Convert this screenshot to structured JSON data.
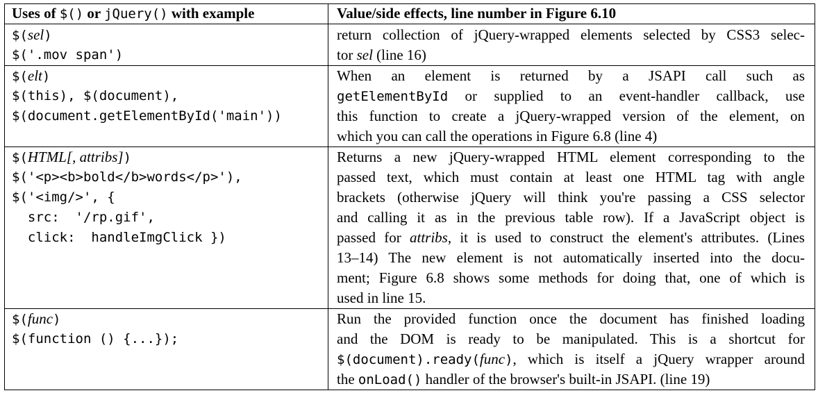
{
  "header": {
    "col1": [
      {
        "t": "Uses of ",
        "s": "serif bold"
      },
      {
        "t": "$()",
        "s": "mono"
      },
      {
        "t": " or ",
        "s": "serif bold"
      },
      {
        "t": "jQuery()",
        "s": "mono"
      },
      {
        "t": " with example",
        "s": "serif bold"
      }
    ],
    "col2": "Value/side effects, line number in Figure 6.10"
  },
  "rows": [
    {
      "left": [
        [
          {
            "t": "$(",
            "s": "mono"
          },
          {
            "t": "sel",
            "s": "it"
          },
          {
            "t": ")",
            "s": "mono"
          }
        ],
        [
          {
            "t": "$('.mov span')",
            "s": "mono"
          }
        ]
      ],
      "right": [
        [
          {
            "t": "return collection of jQuery-wrapped elements selected by CSS3 selec-",
            "s": "serif"
          }
        ],
        [
          {
            "t": "tor ",
            "s": "serif"
          },
          {
            "t": "sel",
            "s": "it"
          },
          {
            "t": " (line 16)",
            "s": "serif"
          }
        ]
      ]
    },
    {
      "left": [
        [
          {
            "t": "$(",
            "s": "mono"
          },
          {
            "t": "elt",
            "s": "it"
          },
          {
            "t": ")",
            "s": "mono"
          }
        ],
        [
          {
            "t": "$(this), $(document),",
            "s": "mono"
          }
        ],
        [
          {
            "t": "$(document.getElementById('main'))",
            "s": "mono"
          }
        ]
      ],
      "right": [
        [
          {
            "t": "When an element is returned by a JSAPI call such as",
            "s": "serif"
          }
        ],
        [
          {
            "t": "getElementById",
            "s": "mono"
          },
          {
            "t": " or supplied to an event-handler callback, use",
            "s": "serif"
          }
        ],
        [
          {
            "t": "this function to create a jQuery-wrapped version of the element, on",
            "s": "serif"
          }
        ],
        [
          {
            "t": "which you can call the operations in Figure 6.8 (line 4)",
            "s": "serif"
          }
        ]
      ]
    },
    {
      "left": [
        [
          {
            "t": "$(",
            "s": "mono"
          },
          {
            "t": "HTML[, attribs]",
            "s": "it"
          },
          {
            "t": ")",
            "s": "mono"
          }
        ],
        [
          {
            "t": "$('<p><b>bold</b>words</p>'),",
            "s": "mono"
          }
        ],
        [
          {
            "t": "$('<img/>', {",
            "s": "mono"
          }
        ],
        [
          {
            "t": "  src:  '/rp.gif',",
            "s": "mono"
          }
        ],
        [
          {
            "t": "  click:  handleImgClick })",
            "s": "mono"
          }
        ]
      ],
      "right": [
        [
          {
            "t": "Returns a new jQuery-wrapped HTML element corresponding to the",
            "s": "serif"
          }
        ],
        [
          {
            "t": "passed text, which must contain at least one HTML tag with angle",
            "s": "serif"
          }
        ],
        [
          {
            "t": "brackets (otherwise jQuery will think you're passing a CSS selector",
            "s": "serif"
          }
        ],
        [
          {
            "t": "and calling it as in the previous table row). If a JavaScript object is",
            "s": "serif"
          }
        ],
        [
          {
            "t": "passed for ",
            "s": "serif"
          },
          {
            "t": "attribs",
            "s": "it"
          },
          {
            "t": ", it is used to construct the element's attributes. (Lines",
            "s": "serif"
          }
        ],
        [
          {
            "t": "13–14) The new element is not automatically inserted into the docu-",
            "s": "serif"
          }
        ],
        [
          {
            "t": "ment; Figure 6.8 shows some methods for doing that, one of which is",
            "s": "serif"
          }
        ],
        [
          {
            "t": "used in line 15.",
            "s": "serif"
          }
        ]
      ]
    },
    {
      "left": [
        [
          {
            "t": "$(",
            "s": "mono"
          },
          {
            "t": "func",
            "s": "it"
          },
          {
            "t": ")",
            "s": "mono"
          }
        ],
        [
          {
            "t": "$(function () {...});",
            "s": "mono"
          }
        ]
      ],
      "right": [
        [
          {
            "t": "Run the provided function once the document has finished loading",
            "s": "serif"
          }
        ],
        [
          {
            "t": "and the DOM is ready to be manipulated.  This is a shortcut for",
            "s": "serif"
          }
        ],
        [
          {
            "t": "$(document).ready(",
            "s": "mono"
          },
          {
            "t": "func",
            "s": "it"
          },
          {
            "t": ")",
            "s": "mono"
          },
          {
            "t": ", which is itself a jQuery wrapper around",
            "s": "serif"
          }
        ],
        [
          {
            "t": "the ",
            "s": "serif"
          },
          {
            "t": "onLoad()",
            "s": "mono"
          },
          {
            "t": " handler of the browser's built-in JSAPI. (line 19)",
            "s": "serif"
          }
        ]
      ]
    }
  ]
}
